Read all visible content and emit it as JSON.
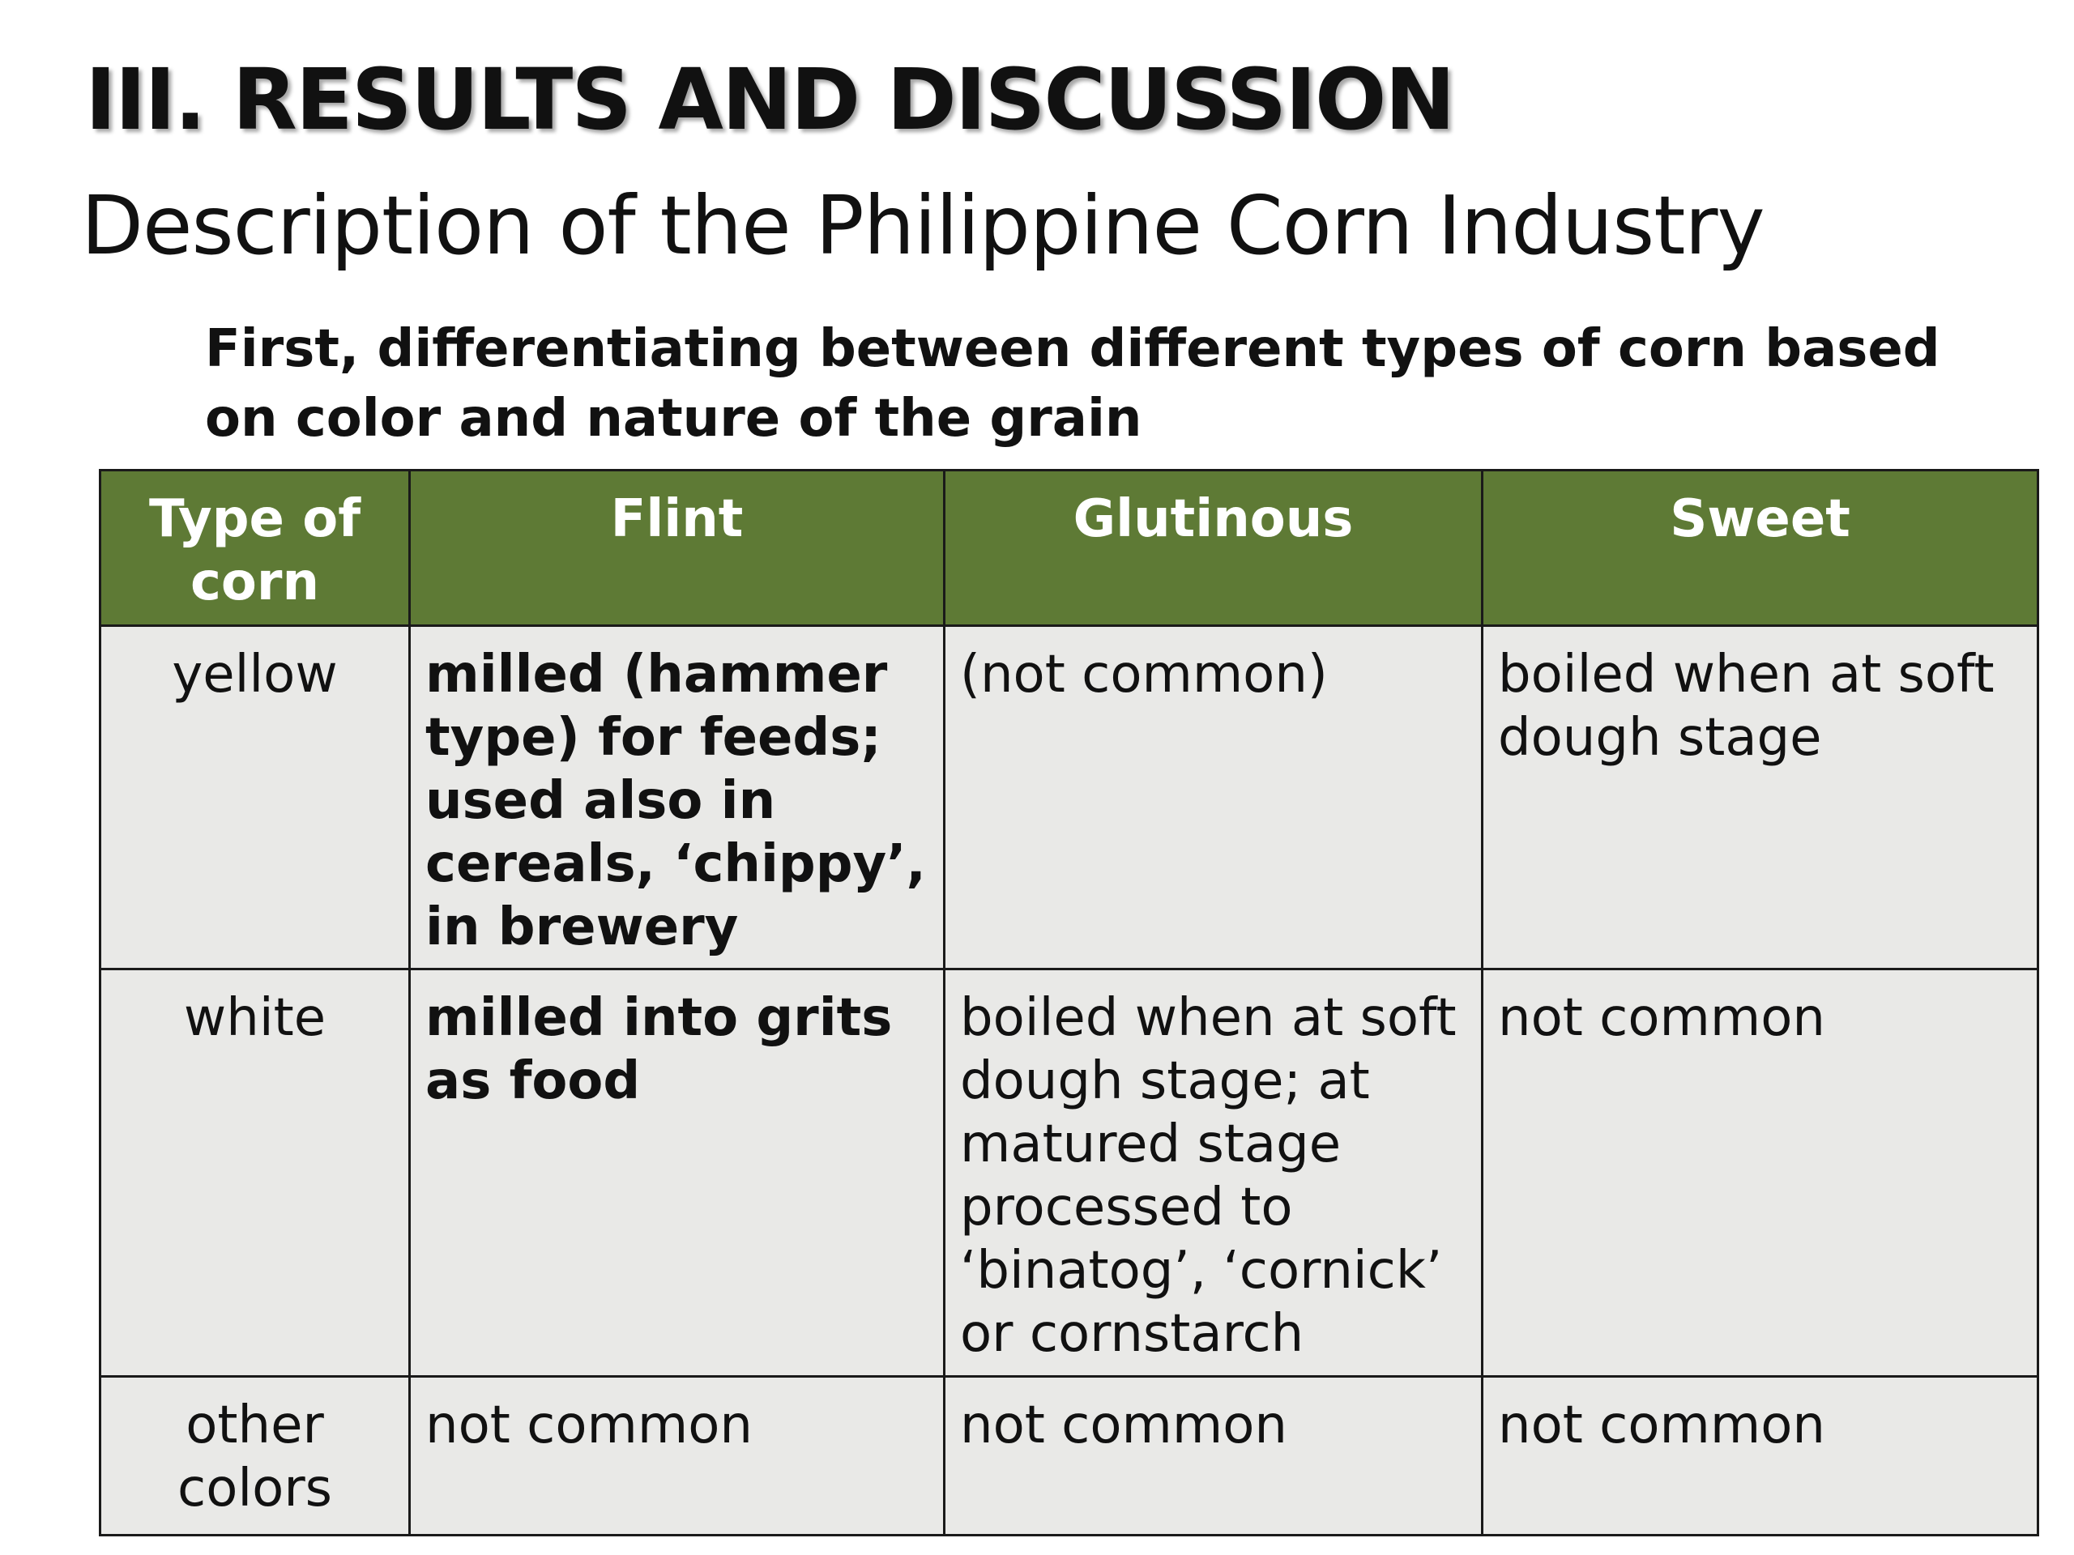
{
  "slide": {
    "heading": "III. RESULTS AND DISCUSSION",
    "subheading": "Description of the Philippine Corn Industry",
    "intro": "First, differentiating between different types of corn based on color and nature of the grain"
  },
  "table": {
    "columns": [
      "Type of corn",
      "Flint",
      "Glutinous",
      "Sweet"
    ],
    "rows": [
      {
        "type": "yellow",
        "flint": "milled (hammer type) for feeds; used also in cereals, ‘chippy’, in brewery",
        "glutinous": "(not common)",
        "sweet": "boiled when at soft dough stage"
      },
      {
        "type": "white",
        "flint": "milled into grits as food",
        "glutinous": "boiled when at soft dough stage; at matured stage processed to ‘binatog’, ‘cornick’ or cornstarch",
        "sweet": "not common"
      },
      {
        "type": "other colors",
        "flint": "not common",
        "glutinous": "not common",
        "sweet": "not common"
      }
    ],
    "colors": {
      "header_bg": "#5e7a35",
      "header_text": "#ffffff",
      "cell_bg": "#e9e9e7"
    }
  }
}
